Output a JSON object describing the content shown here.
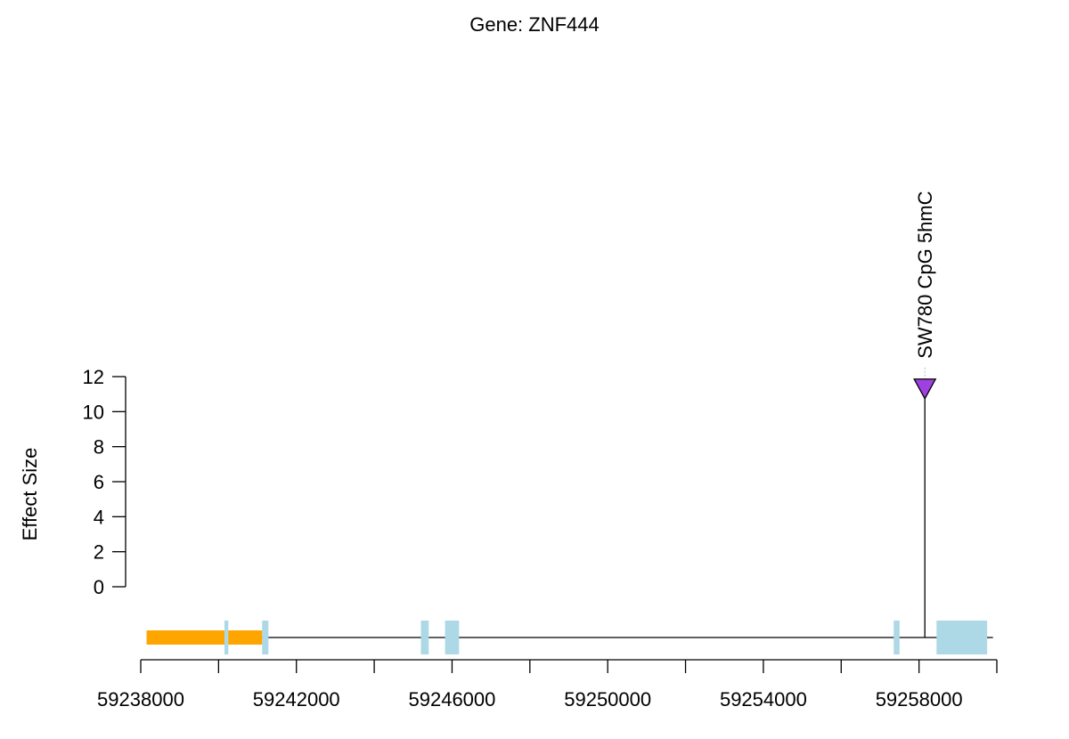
{
  "chart_data": {
    "type": "lollipop",
    "title": "Gene: ZNF444",
    "ylabel": "Effect Size",
    "xlabel": "",
    "xlim": [
      59238000,
      59260000
    ],
    "ylim": [
      0,
      12
    ],
    "y_ticks": [
      {
        "value": 0,
        "label": "0"
      },
      {
        "value": 2,
        "label": "2"
      },
      {
        "value": 4,
        "label": "4"
      },
      {
        "value": 6,
        "label": "6"
      },
      {
        "value": 8,
        "label": "8"
      },
      {
        "value": 10,
        "label": "10"
      },
      {
        "value": 12,
        "label": "12"
      }
    ],
    "x_ticks": [
      {
        "value": 59238000,
        "label": "59238000"
      },
      {
        "value": 59240000,
        "label": ""
      },
      {
        "value": 59242000,
        "label": "59242000"
      },
      {
        "value": 59244000,
        "label": ""
      },
      {
        "value": 59246000,
        "label": "59246000"
      },
      {
        "value": 59248000,
        "label": ""
      },
      {
        "value": 59250000,
        "label": "59250000"
      },
      {
        "value": 59252000,
        "label": ""
      },
      {
        "value": 59254000,
        "label": "59254000"
      },
      {
        "value": 59256000,
        "label": ""
      },
      {
        "value": 59258000,
        "label": "59258000"
      },
      {
        "value": 59260000,
        "label": ""
      }
    ],
    "gene_track": {
      "start": 59238150,
      "end": 59259900,
      "line_color": "#000000",
      "features": [
        {
          "type": "utr",
          "start": 59238150,
          "end": 59241120,
          "color": "#FFA500"
        },
        {
          "type": "exon",
          "start": 59240150,
          "end": 59240250,
          "color": "#ADD8E6"
        },
        {
          "type": "exon",
          "start": 59241120,
          "end": 59241280,
          "color": "#ADD8E6"
        },
        {
          "type": "exon",
          "start": 59245200,
          "end": 59245400,
          "color": "#ADD8E6"
        },
        {
          "type": "exon",
          "start": 59245820,
          "end": 59246180,
          "color": "#ADD8E6"
        },
        {
          "type": "exon",
          "start": 59257350,
          "end": 59257500,
          "color": "#ADD8E6"
        },
        {
          "type": "exon",
          "start": 59258450,
          "end": 59259750,
          "color": "#ADD8E6"
        }
      ]
    },
    "points": [
      {
        "x": 59258150,
        "y": 11.3,
        "label": "SW780 CpG 5hmC",
        "marker": "triangle-down",
        "color": "#A040E0"
      }
    ]
  }
}
